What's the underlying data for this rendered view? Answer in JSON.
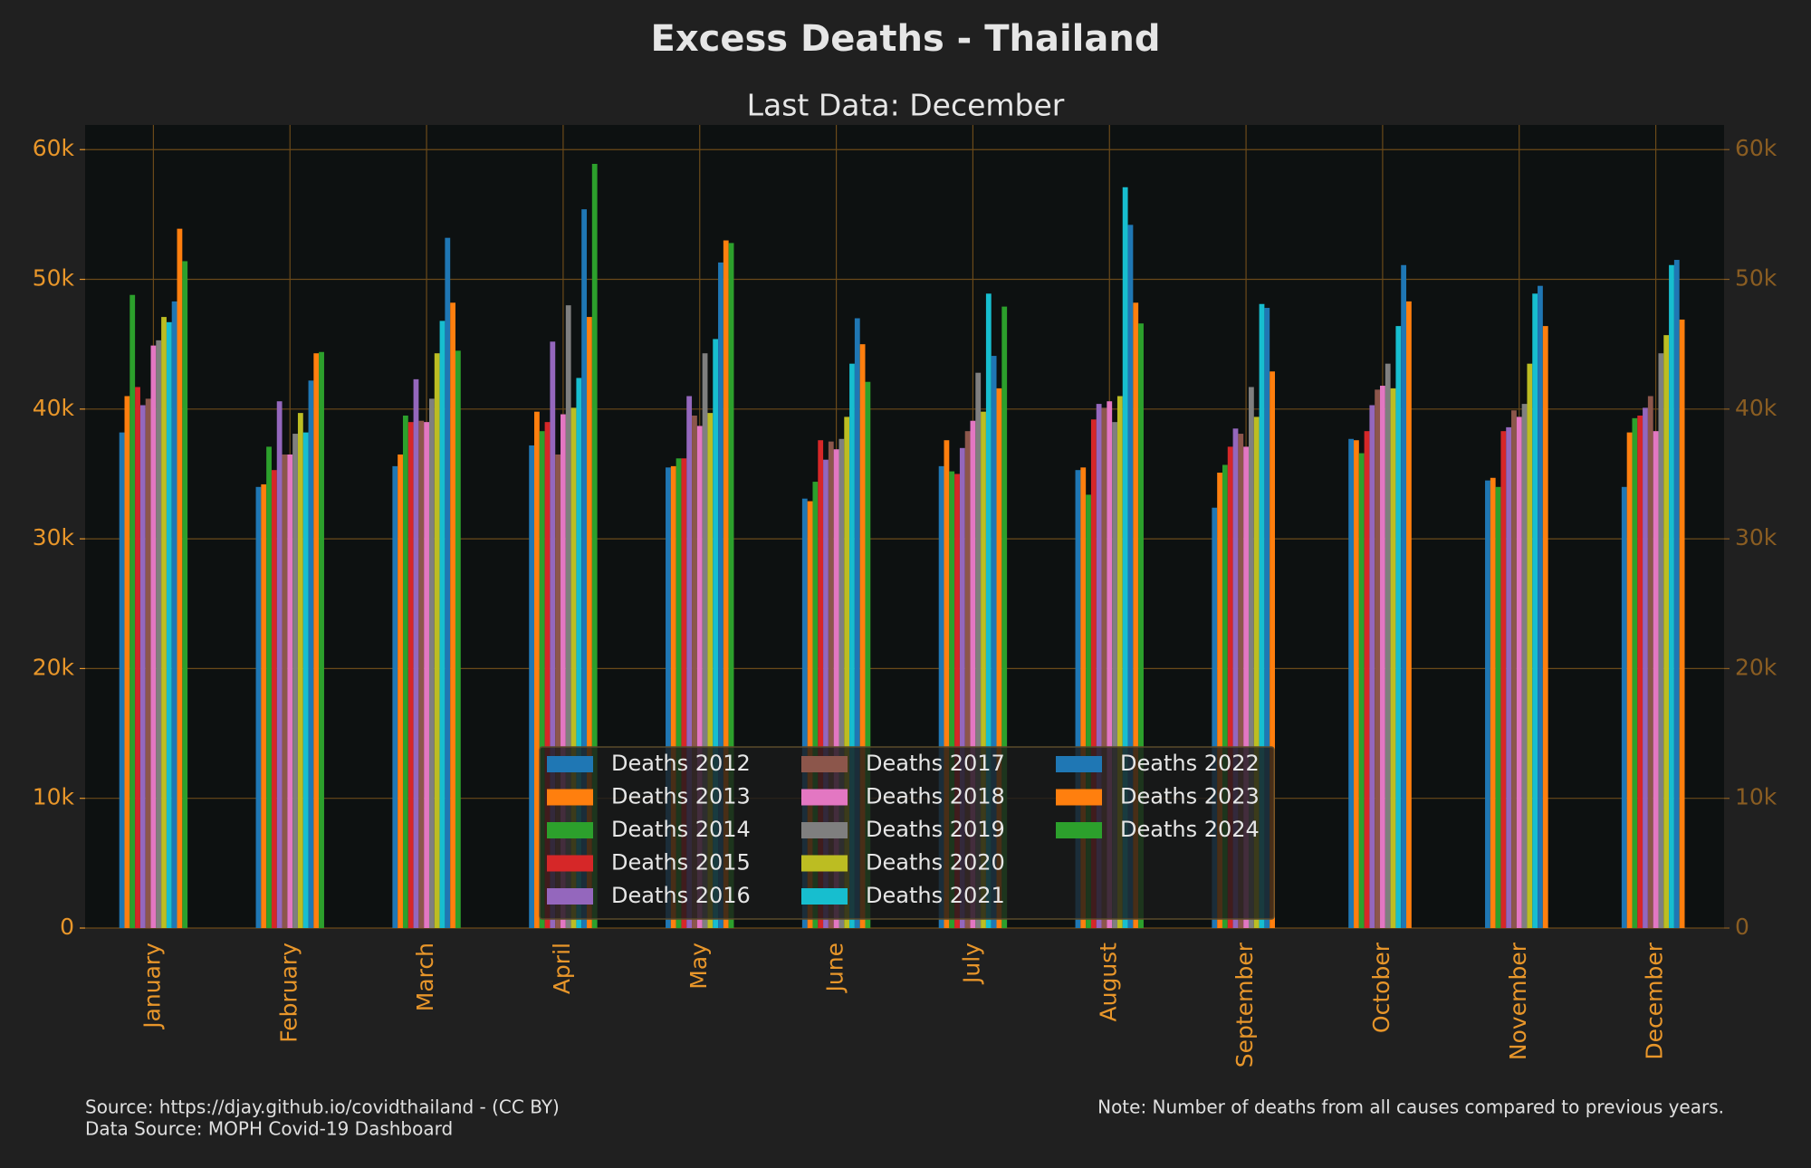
{
  "chart_data": {
    "type": "bar",
    "title": "Excess Deaths - Thailand",
    "subtitle": "Last Data: December",
    "source": "Source: https://djay.github.io/covidthailand - (CC BY)",
    "data_source": "Data Source: MOPH Covid-19 Dashboard",
    "note": "Note: Number of deaths from all causes compared to previous years.",
    "categories": [
      "January",
      "February",
      "March",
      "April",
      "May",
      "June",
      "July",
      "August",
      "September",
      "October",
      "November",
      "December"
    ],
    "ylim": [
      0,
      61900
    ],
    "yticks": [
      0,
      {
        "value": 10000,
        "label": "10k"
      },
      {
        "value": 20000,
        "label": "20k"
      },
      {
        "value": 30000,
        "label": "30k"
      },
      {
        "value": 40000,
        "label": "40k"
      },
      {
        "value": 50000,
        "label": "50k"
      },
      {
        "value": 60000,
        "label": "60k"
      }
    ],
    "grid": true,
    "legend": "lower center",
    "series": [
      {
        "name": "Deaths 2012",
        "color": "#1f77b4",
        "values": [
          38200,
          34000,
          35600,
          37200,
          35500,
          33100,
          35600,
          35300,
          32400,
          37700,
          34500,
          34000
        ]
      },
      {
        "name": "Deaths 2013",
        "color": "#ff7f0e",
        "values": [
          41000,
          34200,
          36500,
          39800,
          35600,
          32900,
          37600,
          35500,
          35100,
          37600,
          34700,
          38200
        ]
      },
      {
        "name": "Deaths 2014",
        "color": "#2ca02c",
        "values": [
          48800,
          37100,
          39500,
          38300,
          36200,
          34400,
          35200,
          33400,
          35700,
          36600,
          34000,
          39300
        ]
      },
      {
        "name": "Deaths 2015",
        "color": "#d62728",
        "values": [
          41700,
          35300,
          39000,
          39000,
          36200,
          37600,
          35000,
          39200,
          37100,
          38300,
          38300,
          39500
        ]
      },
      {
        "name": "Deaths 2016",
        "color": "#9467bd",
        "values": [
          40300,
          40600,
          42300,
          45200,
          41000,
          36100,
          37000,
          40400,
          38500,
          40300,
          38600,
          40100
        ]
      },
      {
        "name": "Deaths 2017",
        "color": "#8c564b",
        "values": [
          40800,
          36500,
          39100,
          36500,
          39500,
          37500,
          38300,
          40100,
          38100,
          41500,
          39900,
          41000
        ]
      },
      {
        "name": "Deaths 2018",
        "color": "#e377c2",
        "values": [
          44900,
          36500,
          39000,
          39600,
          38700,
          36900,
          39100,
          40600,
          37100,
          41800,
          39400,
          38300
        ]
      },
      {
        "name": "Deaths 2019",
        "color": "#7f7f7f",
        "values": [
          45300,
          38100,
          40800,
          48000,
          44300,
          37700,
          42800,
          39000,
          41700,
          43500,
          40400,
          44300
        ]
      },
      {
        "name": "Deaths 2020",
        "color": "#bcbd22",
        "values": [
          47100,
          39700,
          44300,
          40100,
          39700,
          39400,
          39800,
          41000,
          39400,
          41600,
          43500,
          45700
        ]
      },
      {
        "name": "Deaths 2021",
        "color": "#17becf",
        "values": [
          46700,
          38200,
          46800,
          42400,
          45400,
          43500,
          48900,
          57100,
          48100,
          46400,
          48900,
          51100
        ]
      },
      {
        "name": "Deaths 2022",
        "color": "#1f77b4",
        "values": [
          48300,
          42200,
          53200,
          55400,
          51300,
          47000,
          44100,
          54200,
          47800,
          51100,
          49500,
          51500
        ]
      },
      {
        "name": "Deaths 2023",
        "color": "#ff7f0e",
        "values": [
          53900,
          44300,
          48200,
          47100,
          53000,
          45000,
          41600,
          48200,
          42900,
          48300,
          46400,
          46900
        ]
      },
      {
        "name": "Deaths 2024",
        "color": "#2ca02c",
        "values": [
          51400,
          44400,
          44500,
          58900,
          52800,
          42100,
          47900,
          46600,
          null,
          null,
          null,
          null
        ]
      }
    ]
  }
}
